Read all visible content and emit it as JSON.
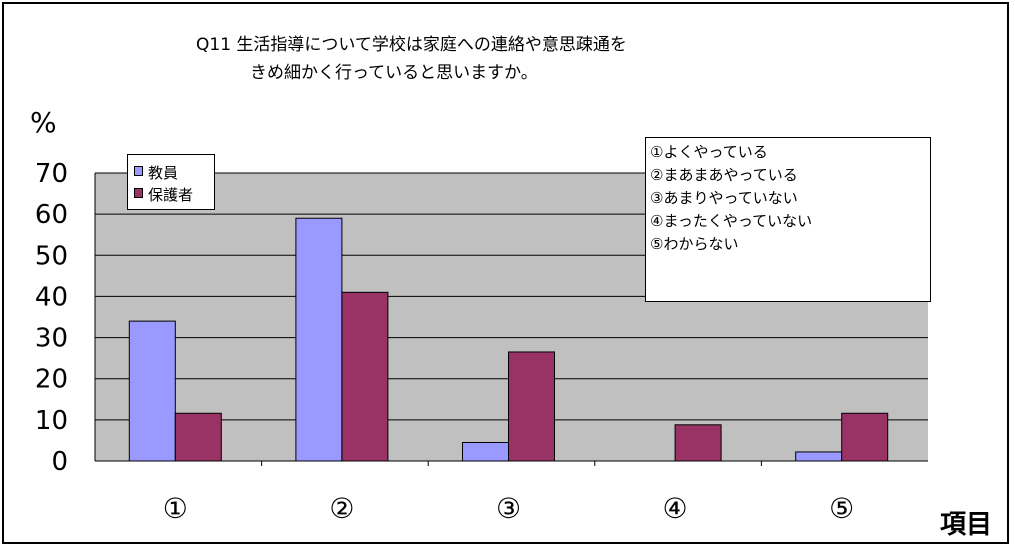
{
  "title": {
    "line1": "Q11 生活指導について学校は家庭への連絡や意思疎通を",
    "line2": "きめ細かく行っていると思いますか。"
  },
  "chart_data": {
    "type": "bar",
    "title": "Q11 生活指導について学校は家庭への連絡や意思疎通をきめ細かく行っていると思いますか。",
    "xlabel": "項目",
    "ylabel": "%",
    "categories": [
      "①",
      "②",
      "③",
      "④",
      "⑤"
    ],
    "ylim": [
      0,
      70
    ],
    "yticks": [
      0,
      10,
      20,
      30,
      40,
      50,
      60,
      70
    ],
    "grid": true,
    "legend_position": "top-left",
    "series": [
      {
        "name": "教員",
        "color": "#9999ff",
        "values": [
          34,
          59,
          4.5,
          0,
          2.2
        ]
      },
      {
        "name": "保護者",
        "color": "#993366",
        "values": [
          11.6,
          41,
          26.5,
          8.8,
          11.6
        ]
      }
    ],
    "plot_background": "#c0c0c0"
  },
  "notes": [
    "①よくやっている",
    "②まあまあやっている",
    "③あまりやっていない",
    "④まったくやっていない",
    "⑤わからない"
  ]
}
